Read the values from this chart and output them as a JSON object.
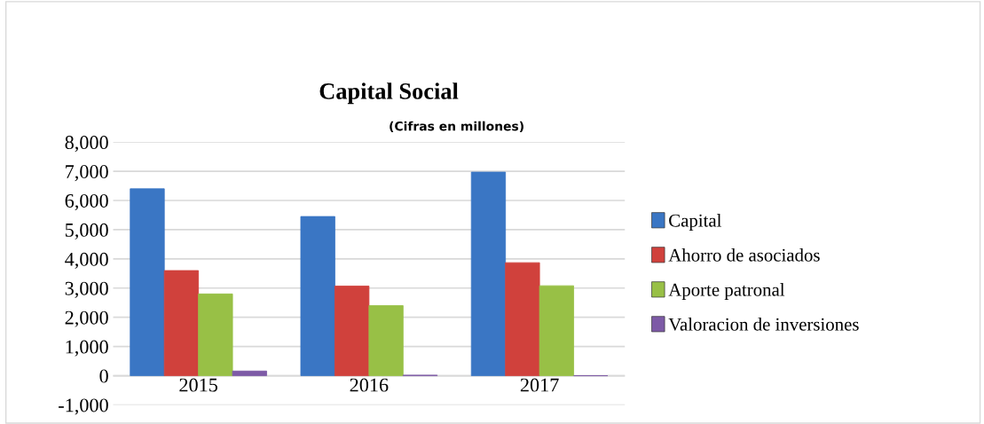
{
  "chart_data": {
    "type": "bar",
    "title": "Capital Social",
    "subtitle": "(Cifras en millones)",
    "categories": [
      "2015",
      "2016",
      "2017"
    ],
    "series": [
      {
        "name": "Capital",
        "color": "#3a76c4",
        "values": [
          6400,
          5450,
          6970
        ]
      },
      {
        "name": "Ahorro de asociados",
        "color": "#d0413c",
        "values": [
          3600,
          3070,
          3870
        ]
      },
      {
        "name": "Aporte patronal",
        "color": "#98c046",
        "values": [
          2800,
          2400,
          3080
        ]
      },
      {
        "name": "Valoracion de inversiones",
        "color": "#7d5aa6",
        "values": [
          160,
          20,
          0
        ]
      }
    ],
    "ylim": [
      -1000,
      8000
    ],
    "yticks": [
      {
        "value": -1000,
        "label": "-1,000"
      },
      0,
      {
        "value": 1000,
        "label": "1,000"
      },
      {
        "value": 2000,
        "label": "2,000"
      },
      {
        "value": 3000,
        "label": "3,000"
      },
      {
        "value": 4000,
        "label": "4,000"
      },
      {
        "value": 5000,
        "label": "5,000"
      },
      {
        "value": 6000,
        "label": "6,000"
      },
      {
        "value": 7000,
        "label": "7,000"
      },
      {
        "value": 8000,
        "label": "8,000"
      }
    ],
    "grid": "y",
    "legend": "right"
  }
}
